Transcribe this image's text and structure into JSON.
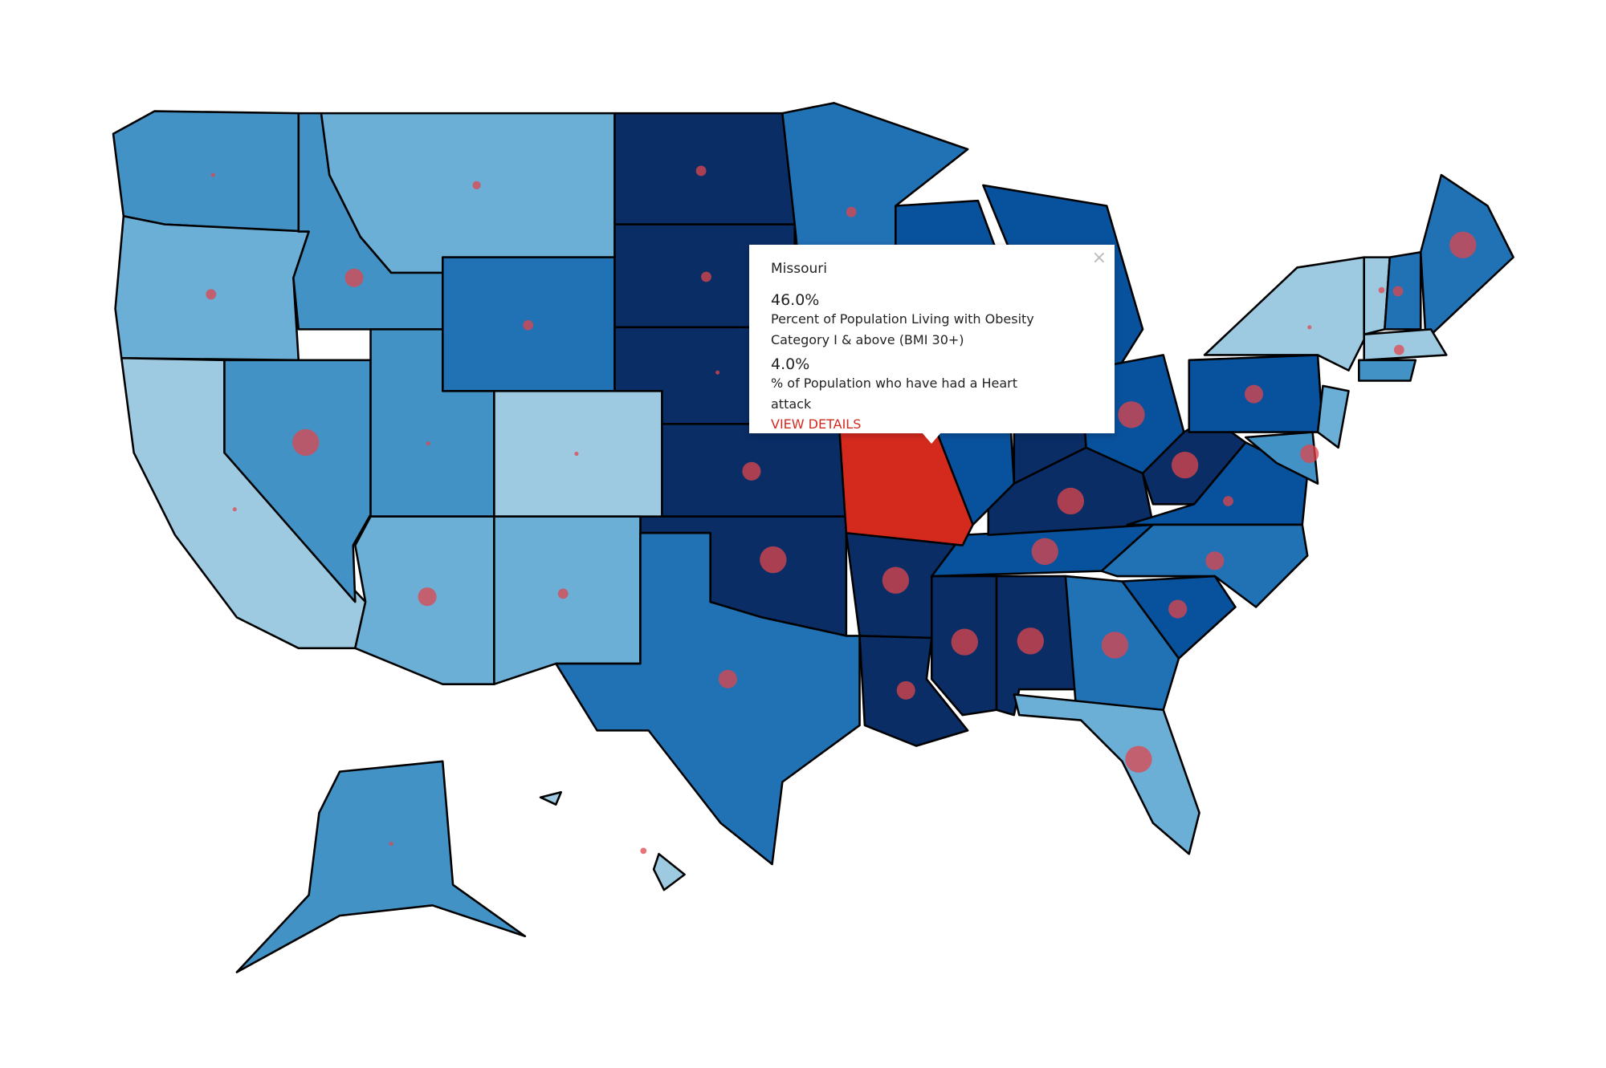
{
  "tooltip": {
    "state": "Missouri",
    "close": "×",
    "metrics": [
      {
        "value": "46.0%",
        "label": "Percent of Population Living with Obesity Category I & above (BMI 30+)"
      },
      {
        "value": "4.0%",
        "label": "% of Population who have had a Heart attack"
      }
    ],
    "link": "VIEW DETAILS"
  }
}
